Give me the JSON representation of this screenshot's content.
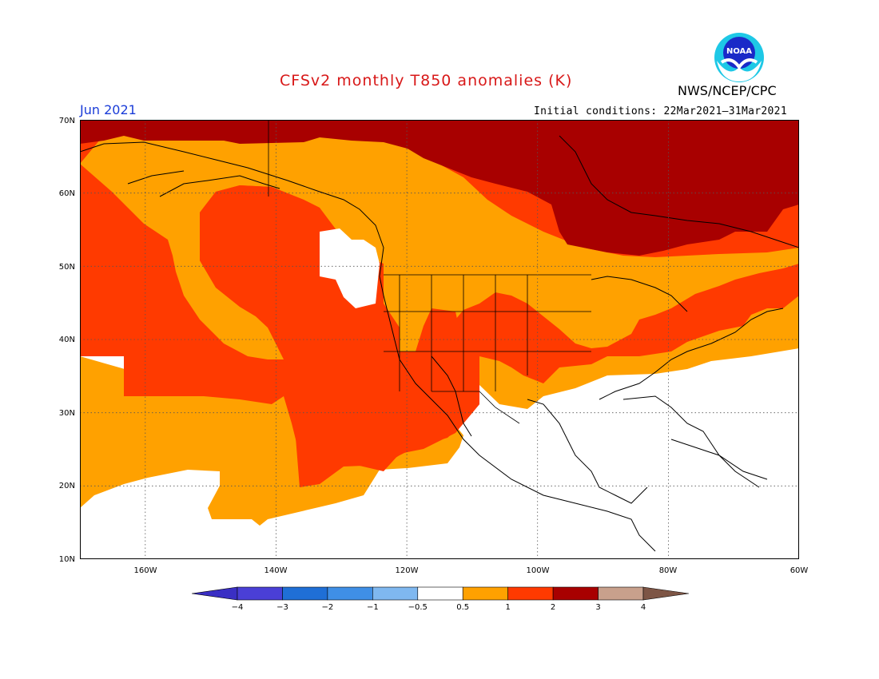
{
  "title": "CFSv2 monthly T850 anomalies (K)",
  "agency": "NWS/NCEP/CPC",
  "month": "Jun 2021",
  "initial_conditions": "Initial conditions: 22Mar2021–31Mar2021",
  "logo": {
    "text": "NOAA",
    "icon": "noaa-logo"
  },
  "map": {
    "projection": "lat-lon",
    "lon_range": [
      -170,
      -60
    ],
    "lat_range": [
      10,
      70
    ],
    "lat_ticks": [
      "10N",
      "20N",
      "30N",
      "40N",
      "50N",
      "60N",
      "70N"
    ],
    "lon_ticks": [
      "160W",
      "140W",
      "120W",
      "100W",
      "80W",
      "60W"
    ],
    "grid": "dotted"
  },
  "colorbar": {
    "labels": [
      "−4",
      "−3",
      "−2",
      "−1",
      "−0.5",
      "0.5",
      "1",
      "2",
      "3",
      "4"
    ],
    "colors": [
      "#3a2fc4",
      "#4a3fd6",
      "#1f6fd6",
      "#3f8fe6",
      "#7fb8f0",
      "#ffffff",
      "#ffa100",
      "#ff3a00",
      "#a80000",
      "#c8a08c",
      "#7d5545"
    ]
  }
}
